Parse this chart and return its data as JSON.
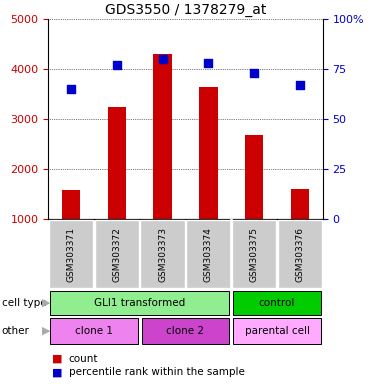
{
  "title": "GDS3550 / 1378279_at",
  "samples": [
    "GSM303371",
    "GSM303372",
    "GSM303373",
    "GSM303374",
    "GSM303375",
    "GSM303376"
  ],
  "counts": [
    1580,
    3250,
    4300,
    3650,
    2680,
    1600
  ],
  "percentile_ranks": [
    65,
    77,
    80,
    78,
    73,
    67
  ],
  "ylim_left": [
    1000,
    5000
  ],
  "ylim_right": [
    0,
    100
  ],
  "yticks_left": [
    1000,
    2000,
    3000,
    4000,
    5000
  ],
  "yticks_right": [
    0,
    25,
    50,
    75,
    100
  ],
  "bar_color": "#cc0000",
  "dot_color": "#0000cc",
  "cell_type_row": [
    {
      "label": "GLI1 transformed",
      "span": [
        0,
        4
      ],
      "color": "#90ee90"
    },
    {
      "label": "control",
      "span": [
        4,
        6
      ],
      "color": "#00cc00"
    }
  ],
  "other_row": [
    {
      "label": "clone 1",
      "span": [
        0,
        2
      ],
      "color": "#ee82ee"
    },
    {
      "label": "clone 2",
      "span": [
        2,
        4
      ],
      "color": "#cc44cc"
    },
    {
      "label": "parental cell",
      "span": [
        4,
        6
      ],
      "color": "#ffaaff"
    }
  ],
  "legend_count_color": "#cc0000",
  "legend_dot_color": "#0000cc",
  "bg_color": "#ffffff",
  "tick_label_color_left": "#cc0000",
  "tick_label_color_right": "#0000cc",
  "xticklabel_bg": "#cccccc",
  "bar_width": 0.4
}
